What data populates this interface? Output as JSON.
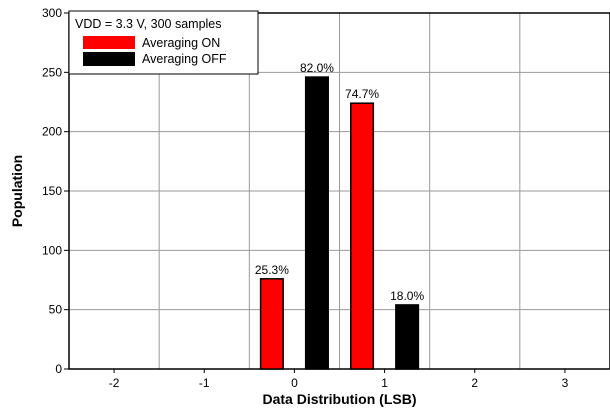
{
  "chart_data": {
    "type": "bar",
    "title": "",
    "xlabel": "Data Distribution (LSB)",
    "ylabel": "Population",
    "categories": [
      "-2",
      "-1",
      "0",
      "1",
      "2",
      "3"
    ],
    "xlim": [
      -2.5,
      3.5
    ],
    "ylim": [
      0,
      300
    ],
    "yticks": [
      0,
      50,
      100,
      150,
      200,
      250,
      300
    ],
    "grid": true,
    "legend": {
      "title": "VDD = 3.3 V, 300 samples",
      "position": "top-left",
      "entries": [
        {
          "name": "Averaging ON",
          "color": "#ff0000"
        },
        {
          "name": "Averaging OFF",
          "color": "#000000"
        }
      ]
    },
    "series": [
      {
        "name": "Averaging ON",
        "color": "#ff0000",
        "points": [
          {
            "x": 0,
            "value": 76,
            "label": "25.3%"
          },
          {
            "x": 1,
            "value": 224,
            "label": "74.7%"
          }
        ]
      },
      {
        "name": "Averaging OFF",
        "color": "#000000",
        "points": [
          {
            "x": 0,
            "value": 246,
            "label": "82.0%"
          },
          {
            "x": 1,
            "value": 54,
            "label": "18.0%"
          }
        ]
      }
    ]
  }
}
